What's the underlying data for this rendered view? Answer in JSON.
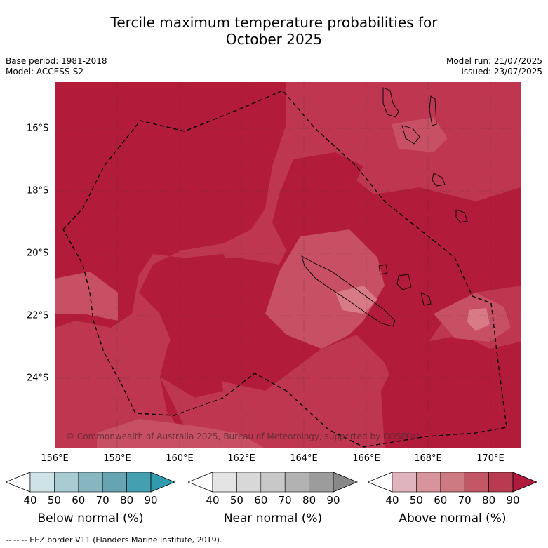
{
  "title_line1": "Tercile maximum temperature probabilities for",
  "title_line2": "October 2025",
  "meta": {
    "base_period": "Base period: 1981-2018",
    "model": "Model: ACCESS-S2",
    "model_run": "Model run: 21/07/2025",
    "issued": "Issued: 23/07/2025"
  },
  "map": {
    "copyright": "© Commonwealth of Australia 2025, Bureau of Meteorology, supported by COSPPac",
    "lat_labels": [
      "16°S",
      "18°S",
      "20°S",
      "22°S",
      "24°S"
    ],
    "lon_labels": [
      "156°E",
      "158°E",
      "160°E",
      "162°E",
      "164°E",
      "166°E",
      "168°E",
      "170°E"
    ],
    "colors": {
      "above_80": "#b21c3a",
      "above_70": "#bf3650",
      "above_60": "#c85064",
      "above_50": "#d97a87"
    }
  },
  "colorbars": [
    {
      "title": "Below normal (%)",
      "ticks": [
        "40",
        "50",
        "60",
        "70",
        "80",
        "90"
      ],
      "colors": [
        "#ffffff",
        "#cde3e8",
        "#a9cbd2",
        "#88b6c0",
        "#66a4b1",
        "#44a0b0",
        "#2f9bad"
      ]
    },
    {
      "title": "Near normal (%)",
      "ticks": [
        "40",
        "50",
        "60",
        "70",
        "80",
        "90"
      ],
      "colors": [
        "#ffffff",
        "#e4e4e4",
        "#d8d8d8",
        "#c8c8c8",
        "#b2b2b2",
        "#9c9c9c",
        "#888888"
      ]
    },
    {
      "title": "Above normal (%)",
      "ticks": [
        "40",
        "50",
        "60",
        "70",
        "80",
        "90"
      ],
      "colors": [
        "#ffffff",
        "#e0b4bc",
        "#d7949c",
        "#cd7a82",
        "#c45766",
        "#b83b52",
        "#b01a3c"
      ]
    }
  ],
  "footnote": "-- -- -- EEZ border V11 (Flanders Marine Institute, 2019)."
}
